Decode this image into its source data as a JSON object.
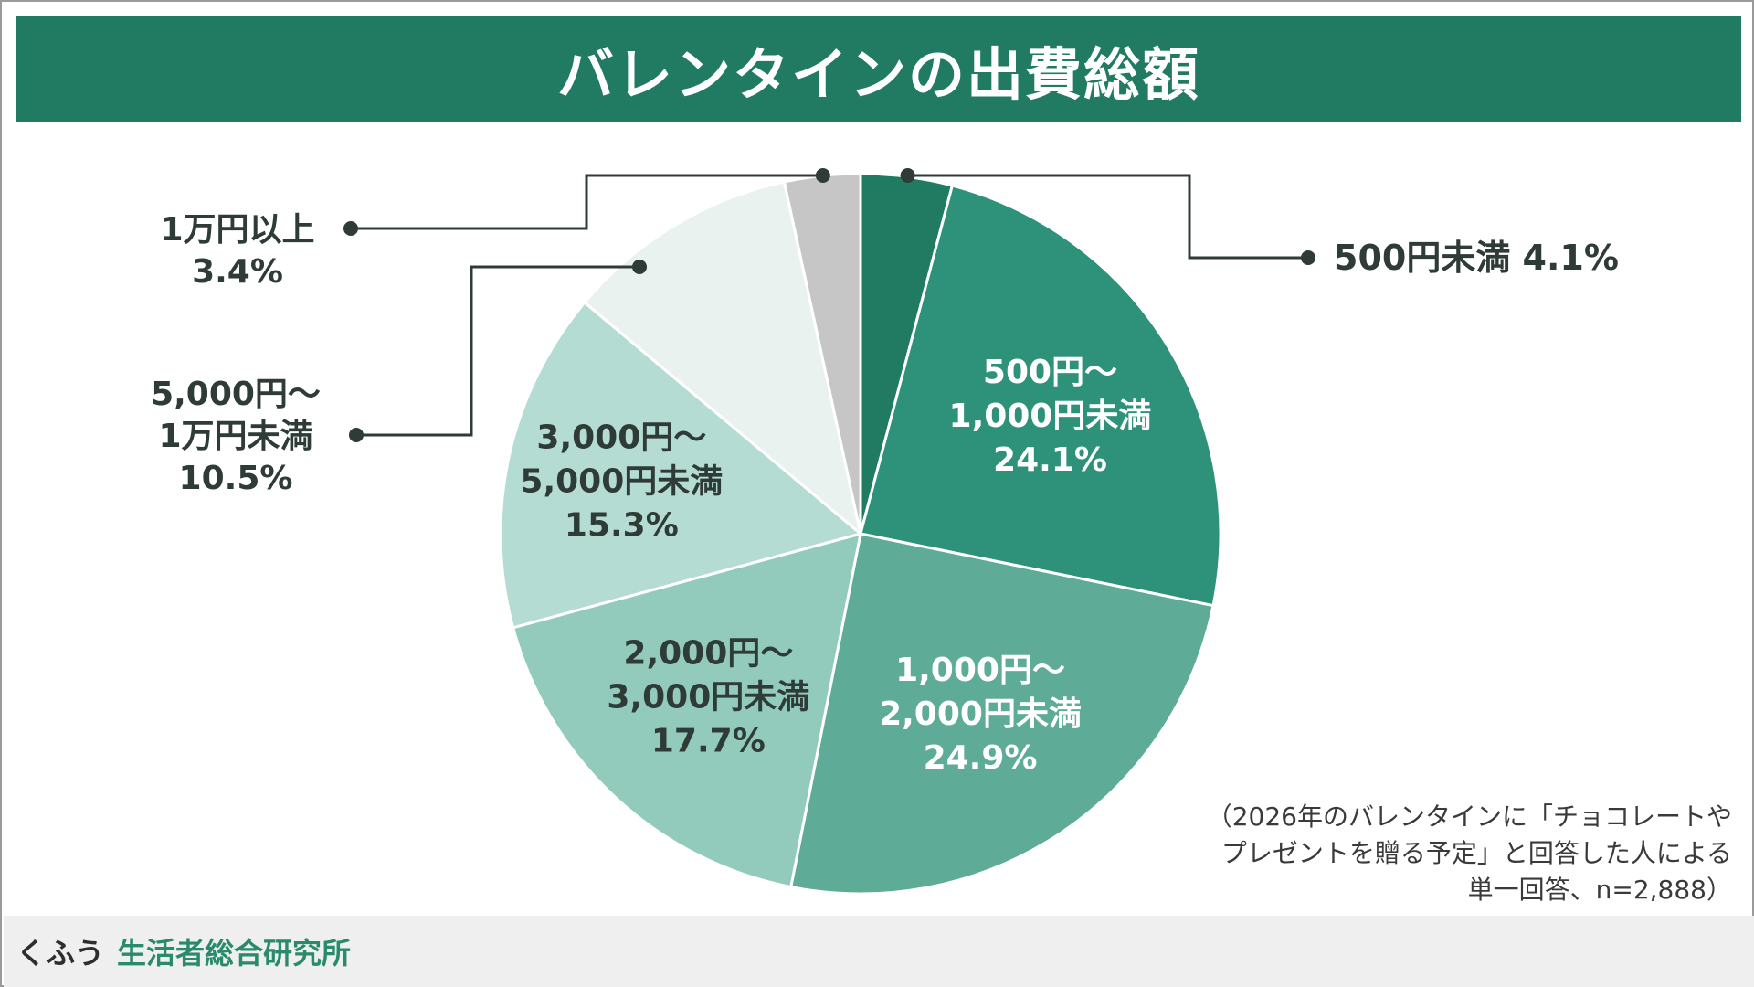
{
  "header": {
    "title": "バレンタインの出費総額"
  },
  "chart_data": {
    "type": "pie",
    "title": "バレンタインの出費総額",
    "unit": "%",
    "start": "12 o'clock",
    "direction": "clockwise",
    "slices": [
      {
        "label": "500円未満",
        "label_lines": [
          "500円未満 4.1%"
        ],
        "value": 4.1,
        "value_text": "4.1%",
        "color": "#207b62",
        "text_color": "#2e3b37",
        "label_placement": "outside-right"
      },
      {
        "label": "500円〜1,000円未満",
        "label_lines": [
          "500円〜",
          "1,000円未満",
          "24.1%"
        ],
        "value": 24.1,
        "value_text": "24.1%",
        "color": "#2e917a",
        "text_color": "#ffffff",
        "label_placement": "inside"
      },
      {
        "label": "1,000円〜2,000円未満",
        "label_lines": [
          "1,000円〜",
          "2,000円未満",
          "24.9%"
        ],
        "value": 24.9,
        "value_text": "24.9%",
        "color": "#5eab97",
        "text_color": "#ffffff",
        "label_placement": "inside"
      },
      {
        "label": "2,000円〜3,000円未満",
        "label_lines": [
          "2,000円〜",
          "3,000円未満",
          "17.7%"
        ],
        "value": 17.7,
        "value_text": "17.7%",
        "color": "#92cbbc",
        "text_color": "#2e3b37",
        "label_placement": "inside"
      },
      {
        "label": "3,000円〜5,000円未満",
        "label_lines": [
          "3,000円〜",
          "5,000円未満",
          "15.3%"
        ],
        "value": 15.3,
        "value_text": "15.3%",
        "color": "#b4dcd3",
        "text_color": "#2e3b37",
        "label_placement": "inside"
      },
      {
        "label": "5,000円〜1万円未満",
        "label_lines": [
          "5,000円〜",
          "1万円未満",
          "10.5%"
        ],
        "value": 10.5,
        "value_text": "10.5%",
        "color": "#e9f2ef",
        "text_color": "#2e3b37",
        "label_placement": "outside-left"
      },
      {
        "label": "1万円以上",
        "label_lines": [
          "1万円以上",
          "3.4%"
        ],
        "value": 3.4,
        "value_text": "3.4%",
        "color": "#c6c6c6",
        "text_color": "#2e3b37",
        "label_placement": "outside-left"
      }
    ]
  },
  "note": {
    "lines": [
      "（2026年のバレンタインに「チョコレートや",
      "プレゼントを贈る予定」と回答した人による",
      "単一回答、n=2,888）"
    ]
  },
  "footer": {
    "brand": "くふう",
    "org": "生活者総合研究所"
  }
}
